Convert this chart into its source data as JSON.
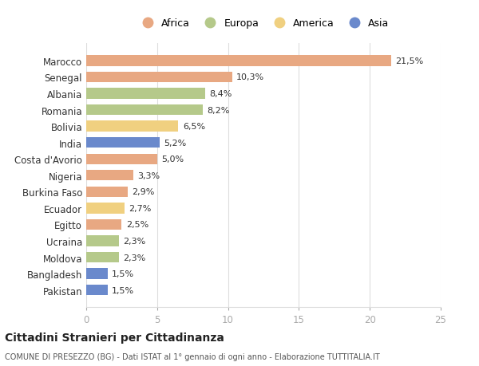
{
  "countries": [
    "Marocco",
    "Senegal",
    "Albania",
    "Romania",
    "Bolivia",
    "India",
    "Costa d'Avorio",
    "Nigeria",
    "Burkina Faso",
    "Ecuador",
    "Egitto",
    "Ucraina",
    "Moldova",
    "Bangladesh",
    "Pakistan"
  ],
  "values": [
    21.5,
    10.3,
    8.4,
    8.2,
    6.5,
    5.2,
    5.0,
    3.3,
    2.9,
    2.7,
    2.5,
    2.3,
    2.3,
    1.5,
    1.5
  ],
  "labels": [
    "21,5%",
    "10,3%",
    "8,4%",
    "8,2%",
    "6,5%",
    "5,2%",
    "5,0%",
    "3,3%",
    "2,9%",
    "2,7%",
    "2,5%",
    "2,3%",
    "2,3%",
    "1,5%",
    "1,5%"
  ],
  "continents": [
    "Africa",
    "Africa",
    "Europa",
    "Europa",
    "America",
    "Asia",
    "Africa",
    "Africa",
    "Africa",
    "America",
    "Africa",
    "Europa",
    "Europa",
    "Asia",
    "Asia"
  ],
  "colors": {
    "Africa": "#E8A882",
    "Europa": "#B5C98A",
    "America": "#F0D080",
    "Asia": "#6A89CC"
  },
  "legend_order": [
    "Africa",
    "Europa",
    "America",
    "Asia"
  ],
  "title": "Cittadini Stranieri per Cittadinanza",
  "subtitle": "COMUNE DI PRESEZZO (BG) - Dati ISTAT al 1° gennaio di ogni anno - Elaborazione TUTTITALIA.IT",
  "xlim": [
    0,
    25
  ],
  "xticks": [
    0,
    5,
    10,
    15,
    20,
    25
  ],
  "background_color": "#ffffff",
  "grid_color": "#dddddd"
}
